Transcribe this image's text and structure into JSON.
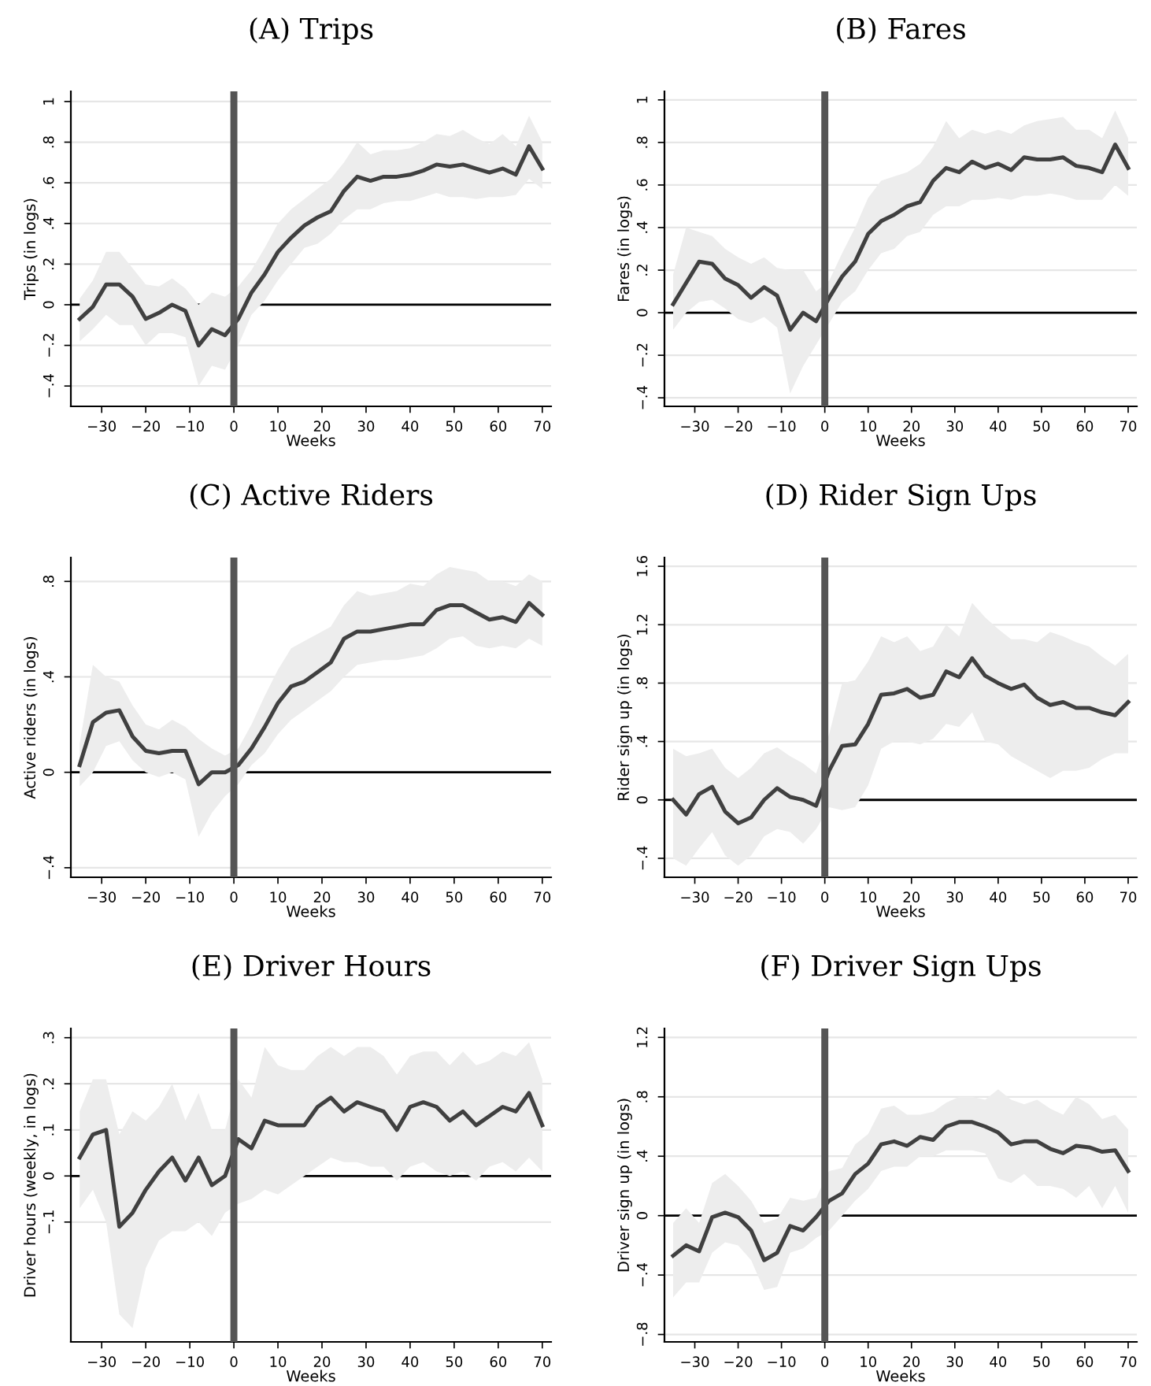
{
  "chart_data": [
    {
      "type": "line",
      "title": "(A) Trips",
      "xlabel": "Weeks",
      "ylabel": "Trips (in logs)",
      "xlim": [
        -37,
        72
      ],
      "ylim": [
        -0.5,
        1.05
      ],
      "xticks": [
        {
          "value": -30,
          "label": "−30"
        },
        {
          "value": -20,
          "label": "−20"
        },
        {
          "value": -10,
          "label": "−10"
        },
        0,
        10,
        20,
        30,
        40,
        50,
        60,
        70
      ],
      "yticks": [
        {
          "value": -0.4,
          "label": "−.4"
        },
        {
          "value": -0.2,
          "label": "−.2"
        },
        0,
        {
          "value": 0.2,
          "label": ".2"
        },
        {
          "value": 0.4,
          "label": ".4"
        },
        {
          "value": 0.6,
          "label": ".6"
        },
        {
          "value": 0.8,
          "label": ".8"
        },
        1
      ],
      "grid": "y",
      "x": [
        -35,
        -32,
        -29,
        -26,
        -23,
        -20,
        -17,
        -14,
        -11,
        -8,
        -5,
        -2,
        1,
        4,
        7,
        10,
        13,
        16,
        19,
        22,
        25,
        28,
        31,
        34,
        37,
        40,
        43,
        46,
        49,
        52,
        55,
        58,
        61,
        64,
        67,
        70
      ],
      "ref_lines": [
        {
          "axis": "y",
          "value": 0,
          "color": "#000000",
          "line_style": "solid"
        },
        {
          "axis": "x",
          "value": 0,
          "color": "#555555",
          "line_style": "solid"
        }
      ],
      "series": [
        {
          "color": "#404040",
          "values": [
            -0.07,
            -0.01,
            0.1,
            0.1,
            0.04,
            -0.07,
            -0.04,
            0.0,
            -0.03,
            -0.2,
            -0.12,
            -0.15,
            -0.07,
            0.06,
            0.15,
            0.26,
            0.33,
            0.39,
            0.43,
            0.46,
            0.56,
            0.63,
            0.61,
            0.63,
            0.63,
            0.64,
            0.66,
            0.69,
            0.68,
            0.69,
            0.67,
            0.65,
            0.67,
            0.64,
            0.78,
            0.67
          ],
          "lower": [
            -0.18,
            -0.12,
            -0.05,
            -0.1,
            -0.1,
            -0.2,
            -0.14,
            -0.14,
            -0.16,
            -0.4,
            -0.3,
            -0.32,
            -0.2,
            -0.05,
            0.02,
            0.12,
            0.2,
            0.28,
            0.3,
            0.35,
            0.42,
            0.47,
            0.47,
            0.5,
            0.51,
            0.51,
            0.53,
            0.55,
            0.53,
            0.53,
            0.52,
            0.53,
            0.53,
            0.54,
            0.62,
            0.57
          ],
          "upper": [
            0.03,
            0.12,
            0.26,
            0.26,
            0.18,
            0.1,
            0.09,
            0.13,
            0.08,
            0.0,
            0.06,
            0.04,
            0.09,
            0.17,
            0.28,
            0.4,
            0.47,
            0.52,
            0.57,
            0.62,
            0.7,
            0.8,
            0.74,
            0.76,
            0.76,
            0.77,
            0.8,
            0.84,
            0.83,
            0.86,
            0.82,
            0.79,
            0.84,
            0.78,
            0.93,
            0.8
          ]
        }
      ]
    },
    {
      "type": "line",
      "title": "(B) Fares",
      "xlabel": "Weeks",
      "ylabel": "Fares (in logs)",
      "xlim": [
        -37,
        72
      ],
      "ylim": [
        -0.44,
        1.04
      ],
      "xticks": [
        {
          "value": -30,
          "label": "−30"
        },
        {
          "value": -20,
          "label": "−20"
        },
        {
          "value": -10,
          "label": "−10"
        },
        0,
        10,
        20,
        30,
        40,
        50,
        60,
        70
      ],
      "yticks": [
        {
          "value": -0.4,
          "label": "−.4"
        },
        {
          "value": -0.2,
          "label": "−.2"
        },
        0,
        {
          "value": 0.2,
          "label": ".2"
        },
        {
          "value": 0.4,
          "label": ".4"
        },
        {
          "value": 0.6,
          "label": ".6"
        },
        {
          "value": 0.8,
          "label": ".8"
        },
        1
      ],
      "grid": "y",
      "x": [
        -35,
        -32,
        -29,
        -26,
        -23,
        -20,
        -17,
        -14,
        -11,
        -8,
        -5,
        -2,
        1,
        4,
        7,
        10,
        13,
        16,
        19,
        22,
        25,
        28,
        31,
        34,
        37,
        40,
        43,
        46,
        49,
        52,
        55,
        58,
        61,
        64,
        67,
        70
      ],
      "ref_lines": [
        {
          "axis": "y",
          "value": 0,
          "color": "#000000",
          "line_style": "solid"
        },
        {
          "axis": "x",
          "value": 0,
          "color": "#555555",
          "line_style": "solid"
        }
      ],
      "series": [
        {
          "color": "#404040",
          "values": [
            0.04,
            0.14,
            0.24,
            0.23,
            0.16,
            0.13,
            0.07,
            0.12,
            0.08,
            -0.08,
            0.0,
            -0.04,
            0.07,
            0.17,
            0.24,
            0.37,
            0.43,
            0.46,
            0.5,
            0.52,
            0.62,
            0.68,
            0.66,
            0.71,
            0.68,
            0.7,
            0.67,
            0.73,
            0.72,
            0.72,
            0.73,
            0.69,
            0.68,
            0.66,
            0.79,
            0.68
          ],
          "lower": [
            -0.08,
            0.0,
            0.05,
            0.06,
            0.02,
            -0.03,
            -0.05,
            -0.02,
            -0.07,
            -0.38,
            -0.25,
            -0.15,
            -0.05,
            0.05,
            0.1,
            0.2,
            0.28,
            0.3,
            0.36,
            0.38,
            0.46,
            0.5,
            0.5,
            0.53,
            0.53,
            0.54,
            0.53,
            0.55,
            0.55,
            0.56,
            0.55,
            0.53,
            0.53,
            0.53,
            0.6,
            0.55
          ],
          "upper": [
            0.18,
            0.4,
            0.38,
            0.36,
            0.3,
            0.26,
            0.23,
            0.26,
            0.21,
            0.2,
            0.2,
            0.1,
            0.15,
            0.28,
            0.4,
            0.54,
            0.62,
            0.64,
            0.66,
            0.7,
            0.78,
            0.9,
            0.82,
            0.86,
            0.84,
            0.86,
            0.84,
            0.88,
            0.9,
            0.91,
            0.92,
            0.86,
            0.86,
            0.82,
            0.95,
            0.82
          ]
        }
      ]
    },
    {
      "type": "line",
      "title": "(C) Active Riders",
      "xlabel": "Weeks",
      "ylabel": "Active riders (in logs)",
      "xlim": [
        -37,
        72
      ],
      "ylim": [
        -0.44,
        0.9
      ],
      "xticks": [
        {
          "value": -30,
          "label": "−30"
        },
        {
          "value": -20,
          "label": "−20"
        },
        {
          "value": -10,
          "label": "−10"
        },
        0,
        10,
        20,
        30,
        40,
        50,
        60,
        70
      ],
      "yticks": [
        {
          "value": -0.4,
          "label": "−.4"
        },
        0,
        {
          "value": 0.4,
          "label": ".4"
        },
        {
          "value": 0.8,
          "label": ".8"
        }
      ],
      "grid": "y",
      "x": [
        -35,
        -32,
        -29,
        -26,
        -23,
        -20,
        -17,
        -14,
        -11,
        -8,
        -5,
        -2,
        1,
        4,
        7,
        10,
        13,
        16,
        19,
        22,
        25,
        28,
        31,
        34,
        37,
        40,
        43,
        46,
        49,
        52,
        55,
        58,
        61,
        64,
        67,
        70
      ],
      "ref_lines": [
        {
          "axis": "y",
          "value": 0,
          "color": "#000000",
          "line_style": "solid"
        },
        {
          "axis": "x",
          "value": 0,
          "color": "#555555",
          "line_style": "solid"
        }
      ],
      "series": [
        {
          "color": "#404040",
          "values": [
            0.03,
            0.21,
            0.25,
            0.26,
            0.15,
            0.09,
            0.08,
            0.09,
            0.09,
            -0.05,
            0.0,
            0.0,
            0.03,
            0.1,
            0.19,
            0.29,
            0.36,
            0.38,
            0.42,
            0.46,
            0.56,
            0.59,
            0.59,
            0.6,
            0.61,
            0.62,
            0.62,
            0.68,
            0.7,
            0.7,
            0.67,
            0.64,
            0.65,
            0.63,
            0.71,
            0.66
          ],
          "lower": [
            -0.06,
            0.0,
            0.11,
            0.13,
            0.05,
            0.0,
            -0.02,
            0.0,
            -0.03,
            -0.27,
            -0.17,
            -0.1,
            -0.05,
            0.03,
            0.08,
            0.16,
            0.22,
            0.26,
            0.3,
            0.34,
            0.4,
            0.45,
            0.46,
            0.47,
            0.47,
            0.48,
            0.49,
            0.52,
            0.56,
            0.57,
            0.53,
            0.52,
            0.53,
            0.52,
            0.56,
            0.53
          ],
          "upper": [
            0.12,
            0.45,
            0.4,
            0.38,
            0.28,
            0.2,
            0.18,
            0.22,
            0.19,
            0.14,
            0.1,
            0.07,
            0.1,
            0.2,
            0.32,
            0.43,
            0.52,
            0.55,
            0.58,
            0.61,
            0.7,
            0.76,
            0.74,
            0.75,
            0.76,
            0.79,
            0.78,
            0.83,
            0.86,
            0.85,
            0.84,
            0.8,
            0.8,
            0.78,
            0.83,
            0.8
          ]
        }
      ]
    },
    {
      "type": "line",
      "title": "(D) Rider Sign Ups",
      "xlabel": "Weeks",
      "ylabel": "Rider sign up (in logs)",
      "xlim": [
        -37,
        72
      ],
      "ylim": [
        -0.53,
        1.66
      ],
      "xticks": [
        {
          "value": -30,
          "label": "−30"
        },
        {
          "value": -20,
          "label": "−20"
        },
        {
          "value": -10,
          "label": "−10"
        },
        0,
        10,
        20,
        30,
        40,
        50,
        60,
        70
      ],
      "yticks": [
        {
          "value": -0.4,
          "label": "−.4"
        },
        0,
        {
          "value": 0.4,
          "label": ".4"
        },
        {
          "value": 0.8,
          "label": ".8"
        },
        1.2,
        1.6
      ],
      "grid": "y",
      "x": [
        -35,
        -32,
        -29,
        -26,
        -23,
        -20,
        -17,
        -14,
        -11,
        -8,
        -5,
        -2,
        1,
        4,
        7,
        10,
        13,
        16,
        19,
        22,
        25,
        28,
        31,
        34,
        37,
        40,
        43,
        46,
        49,
        52,
        55,
        58,
        61,
        64,
        67,
        70
      ],
      "ref_lines": [
        {
          "axis": "y",
          "value": 0,
          "color": "#000000",
          "line_style": "solid"
        },
        {
          "axis": "x",
          "value": 0,
          "color": "#555555",
          "line_style": "solid"
        }
      ],
      "series": [
        {
          "color": "#404040",
          "values": [
            0.0,
            -0.1,
            0.04,
            0.09,
            -0.08,
            -0.16,
            -0.12,
            0.0,
            0.08,
            0.02,
            0.0,
            -0.04,
            0.2,
            0.37,
            0.38,
            0.52,
            0.72,
            0.73,
            0.76,
            0.7,
            0.72,
            0.88,
            0.84,
            0.97,
            0.85,
            0.8,
            0.76,
            0.79,
            0.7,
            0.65,
            0.67,
            0.63,
            0.63,
            0.6,
            0.58,
            0.67
          ],
          "lower": [
            -0.4,
            -0.45,
            -0.33,
            -0.22,
            -0.38,
            -0.45,
            -0.38,
            -0.25,
            -0.2,
            -0.22,
            -0.3,
            -0.2,
            -0.05,
            -0.07,
            -0.05,
            0.1,
            0.35,
            0.4,
            0.4,
            0.38,
            0.42,
            0.52,
            0.5,
            0.6,
            0.4,
            0.38,
            0.3,
            0.25,
            0.2,
            0.15,
            0.2,
            0.2,
            0.22,
            0.28,
            0.32,
            0.32
          ],
          "upper": [
            0.35,
            0.3,
            0.32,
            0.35,
            0.22,
            0.15,
            0.22,
            0.32,
            0.36,
            0.3,
            0.25,
            0.18,
            0.45,
            0.8,
            0.82,
            0.95,
            1.12,
            1.08,
            1.12,
            1.02,
            1.05,
            1.2,
            1.12,
            1.35,
            1.25,
            1.17,
            1.1,
            1.1,
            1.08,
            1.15,
            1.12,
            1.08,
            1.05,
            0.98,
            0.92,
            1.0
          ]
        }
      ]
    },
    {
      "type": "line",
      "title": "(E) Driver Hours",
      "xlabel": "Weeks",
      "ylabel": "Driver hours (weekly, in logs)",
      "xlim": [
        -37,
        72
      ],
      "ylim": [
        -0.36,
        0.32
      ],
      "xticks": [
        {
          "value": -30,
          "label": "−30"
        },
        {
          "value": -20,
          "label": "−20"
        },
        {
          "value": -10,
          "label": "−10"
        },
        0,
        10,
        20,
        30,
        40,
        50,
        60,
        70
      ],
      "yticks": [
        {
          "value": -0.1,
          "label": "−.1"
        },
        0,
        {
          "value": 0.1,
          "label": ".1"
        },
        {
          "value": 0.2,
          "label": ".2"
        },
        {
          "value": 0.3,
          "label": ".3"
        }
      ],
      "grid": "y",
      "x": [
        -35,
        -32,
        -29,
        -26,
        -23,
        -20,
        -17,
        -14,
        -11,
        -8,
        -5,
        -2,
        1,
        4,
        7,
        10,
        13,
        16,
        19,
        22,
        25,
        28,
        31,
        34,
        37,
        40,
        43,
        46,
        49,
        52,
        55,
        58,
        61,
        64,
        67,
        70
      ],
      "ref_lines": [
        {
          "axis": "y",
          "value": 0,
          "color": "#000000",
          "line_style": "solid"
        },
        {
          "axis": "x",
          "value": 0,
          "color": "#555555",
          "line_style": "solid"
        }
      ],
      "series": [
        {
          "color": "#404040",
          "values": [
            0.04,
            0.09,
            0.1,
            -0.11,
            -0.08,
            -0.03,
            0.01,
            0.04,
            -0.01,
            0.04,
            -0.02,
            0.0,
            0.08,
            0.06,
            0.12,
            0.11,
            0.11,
            0.11,
            0.15,
            0.17,
            0.14,
            0.16,
            0.15,
            0.14,
            0.1,
            0.15,
            0.16,
            0.15,
            0.12,
            0.14,
            0.11,
            0.13,
            0.15,
            0.14,
            0.18,
            0.11
          ],
          "lower": [
            -0.07,
            -0.03,
            -0.1,
            -0.3,
            -0.33,
            -0.2,
            -0.14,
            -0.12,
            -0.12,
            -0.1,
            -0.13,
            -0.08,
            -0.06,
            -0.05,
            -0.03,
            -0.04,
            -0.02,
            0.0,
            0.02,
            0.04,
            0.03,
            0.03,
            0.02,
            0.02,
            -0.01,
            0.02,
            0.03,
            0.01,
            0.0,
            0.01,
            -0.01,
            0.02,
            0.03,
            0.01,
            0.04,
            0.01
          ],
          "upper": [
            0.14,
            0.21,
            0.21,
            0.09,
            0.14,
            0.12,
            0.15,
            0.2,
            0.12,
            0.18,
            0.1,
            0.1,
            0.21,
            0.17,
            0.28,
            0.24,
            0.23,
            0.23,
            0.26,
            0.28,
            0.26,
            0.28,
            0.28,
            0.26,
            0.22,
            0.26,
            0.27,
            0.27,
            0.24,
            0.27,
            0.24,
            0.25,
            0.27,
            0.26,
            0.29,
            0.21
          ]
        }
      ]
    },
    {
      "type": "line",
      "title": "(F) Driver Sign Ups",
      "xlabel": "Weeks",
      "ylabel": "Driver sign up (in logs)",
      "xlim": [
        -37,
        72
      ],
      "ylim": [
        -0.85,
        1.26
      ],
      "xticks": [
        {
          "value": -30,
          "label": "−30"
        },
        {
          "value": -20,
          "label": "−20"
        },
        {
          "value": -10,
          "label": "−10"
        },
        0,
        10,
        20,
        30,
        40,
        50,
        60,
        70
      ],
      "yticks": [
        {
          "value": -0.8,
          "label": "−.8"
        },
        {
          "value": -0.4,
          "label": "−.4"
        },
        0,
        {
          "value": 0.4,
          "label": ".4"
        },
        {
          "value": 0.8,
          "label": ".8"
        },
        1.2
      ],
      "grid": "y",
      "x": [
        -35,
        -32,
        -29,
        -26,
        -23,
        -20,
        -17,
        -14,
        -11,
        -8,
        -5,
        -2,
        1,
        4,
        7,
        10,
        13,
        16,
        19,
        22,
        25,
        28,
        31,
        34,
        37,
        40,
        43,
        46,
        49,
        52,
        55,
        58,
        61,
        64,
        67,
        70
      ],
      "ref_lines": [
        {
          "axis": "y",
          "value": 0,
          "color": "#000000",
          "line_style": "solid"
        },
        {
          "axis": "x",
          "value": 0,
          "color": "#555555",
          "line_style": "solid"
        }
      ],
      "series": [
        {
          "color": "#404040",
          "values": [
            -0.27,
            -0.2,
            -0.24,
            -0.01,
            0.02,
            -0.01,
            -0.1,
            -0.3,
            -0.25,
            -0.07,
            -0.1,
            -0.01,
            0.1,
            0.15,
            0.28,
            0.35,
            0.48,
            0.5,
            0.47,
            0.53,
            0.51,
            0.6,
            0.63,
            0.63,
            0.6,
            0.56,
            0.48,
            0.5,
            0.5,
            0.45,
            0.42,
            0.47,
            0.46,
            0.43,
            0.44,
            0.3
          ],
          "lower": [
            -0.55,
            -0.45,
            -0.45,
            -0.25,
            -0.18,
            -0.2,
            -0.3,
            -0.5,
            -0.48,
            -0.25,
            -0.22,
            -0.15,
            -0.1,
            0.0,
            0.1,
            0.18,
            0.3,
            0.33,
            0.33,
            0.4,
            0.4,
            0.44,
            0.44,
            0.44,
            0.42,
            0.25,
            0.22,
            0.28,
            0.2,
            0.2,
            0.18,
            0.12,
            0.2,
            0.05,
            0.2,
            0.02
          ],
          "upper": [
            -0.05,
            0.05,
            -0.05,
            0.22,
            0.28,
            0.2,
            0.1,
            -0.05,
            -0.02,
            0.12,
            0.1,
            0.12,
            0.3,
            0.32,
            0.48,
            0.55,
            0.72,
            0.74,
            0.68,
            0.68,
            0.7,
            0.76,
            0.8,
            0.8,
            0.78,
            0.85,
            0.78,
            0.75,
            0.78,
            0.72,
            0.68,
            0.8,
            0.75,
            0.65,
            0.68,
            0.58
          ]
        }
      ]
    }
  ]
}
